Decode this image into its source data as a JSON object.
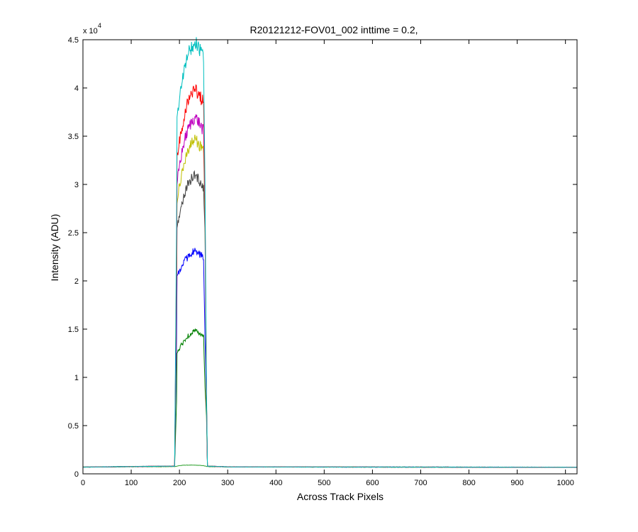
{
  "chart_data": {
    "type": "line",
    "title": "R20121212-FOV01_002 inttime = 0.2,",
    "xlabel": "Across Track Pixels",
    "ylabel": "Intensity (ADU)",
    "y_exponent_label": "x 10",
    "y_exponent": "4",
    "xlim": [
      0,
      1024
    ],
    "ylim": [
      0,
      45000
    ],
    "grid": false,
    "legend": "none",
    "x_ticks": [
      0,
      100,
      200,
      300,
      400,
      500,
      600,
      700,
      800,
      900,
      1000
    ],
    "x_tick_labels": [
      "0",
      "100",
      "200",
      "300",
      "400",
      "500",
      "600",
      "700",
      "800",
      "900",
      "1000"
    ],
    "y_ticks": [
      0,
      5000,
      10000,
      15000,
      20000,
      25000,
      30000,
      35000,
      40000,
      45000
    ],
    "y_tick_labels": [
      "0",
      "0.5",
      "1",
      "1.5",
      "2",
      "2.5",
      "3",
      "3.5",
      "4",
      "4.5"
    ],
    "baseline": 700,
    "series": [
      {
        "color": "#2ca02c",
        "x": [
          0,
          190,
          195,
          200,
          210,
          220,
          232,
          240,
          250,
          253,
          258,
          300,
          500,
          700,
          1024
        ],
        "y": [
          700,
          750,
          800,
          850,
          900,
          900,
          900,
          880,
          850,
          800,
          750,
          720,
          700,
          690,
          680
        ]
      },
      {
        "color": "#008000",
        "x": [
          0,
          190,
          194,
          195,
          200,
          210,
          220,
          232,
          240,
          250,
          253,
          256,
          258,
          300,
          1024
        ],
        "y": [
          700,
          800,
          7500,
          12500,
          13000,
          13800,
          14400,
          14900,
          14500,
          14200,
          9000,
          6000,
          800,
          720,
          680
        ]
      },
      {
        "color": "#0000ff",
        "x": [
          0,
          190,
          194,
          195,
          200,
          210,
          220,
          232,
          240,
          250,
          253,
          256,
          258,
          300,
          1024
        ],
        "y": [
          700,
          800,
          14000,
          20500,
          21000,
          22000,
          22700,
          23100,
          22800,
          22500,
          14000,
          7500,
          800,
          720,
          680
        ]
      },
      {
        "color": "#404040",
        "x": [
          0,
          190,
          194,
          195,
          200,
          210,
          220,
          232,
          240,
          250,
          253,
          256,
          258,
          300,
          1024
        ],
        "y": [
          700,
          800,
          18000,
          25500,
          27000,
          29000,
          30300,
          31000,
          30500,
          29700,
          25000,
          8000,
          800,
          720,
          680
        ]
      },
      {
        "color": "#bfbf00",
        "x": [
          0,
          190,
          194,
          195,
          200,
          210,
          220,
          232,
          240,
          250,
          253,
          256,
          258,
          300,
          1024
        ],
        "y": [
          700,
          800,
          20000,
          28000,
          30000,
          32300,
          33800,
          34700,
          34200,
          33300,
          26000,
          8000,
          800,
          720,
          680
        ]
      },
      {
        "color": "#bf00bf",
        "x": [
          0,
          190,
          194,
          195,
          200,
          210,
          220,
          232,
          240,
          250,
          253,
          256,
          258,
          300,
          1024
        ],
        "y": [
          700,
          800,
          21000,
          30000,
          32000,
          34500,
          36000,
          37000,
          36500,
          35500,
          27000,
          8000,
          800,
          720,
          680
        ]
      },
      {
        "color": "#ff0000",
        "x": [
          0,
          190,
          194,
          195,
          200,
          210,
          220,
          232,
          240,
          250,
          253,
          256,
          258,
          300,
          1024
        ],
        "y": [
          700,
          800,
          23000,
          33000,
          34500,
          37200,
          39000,
          40000,
          39300,
          38500,
          28000,
          8000,
          800,
          720,
          680
        ]
      },
      {
        "color": "#00bfbf",
        "x": [
          0,
          190,
          194,
          195,
          200,
          210,
          220,
          232,
          240,
          250,
          253,
          256,
          258,
          300,
          1024
        ],
        "y": [
          700,
          800,
          26000,
          37000,
          39000,
          42000,
          43800,
          44700,
          44200,
          43000,
          30000,
          9000,
          800,
          720,
          680
        ]
      }
    ]
  }
}
